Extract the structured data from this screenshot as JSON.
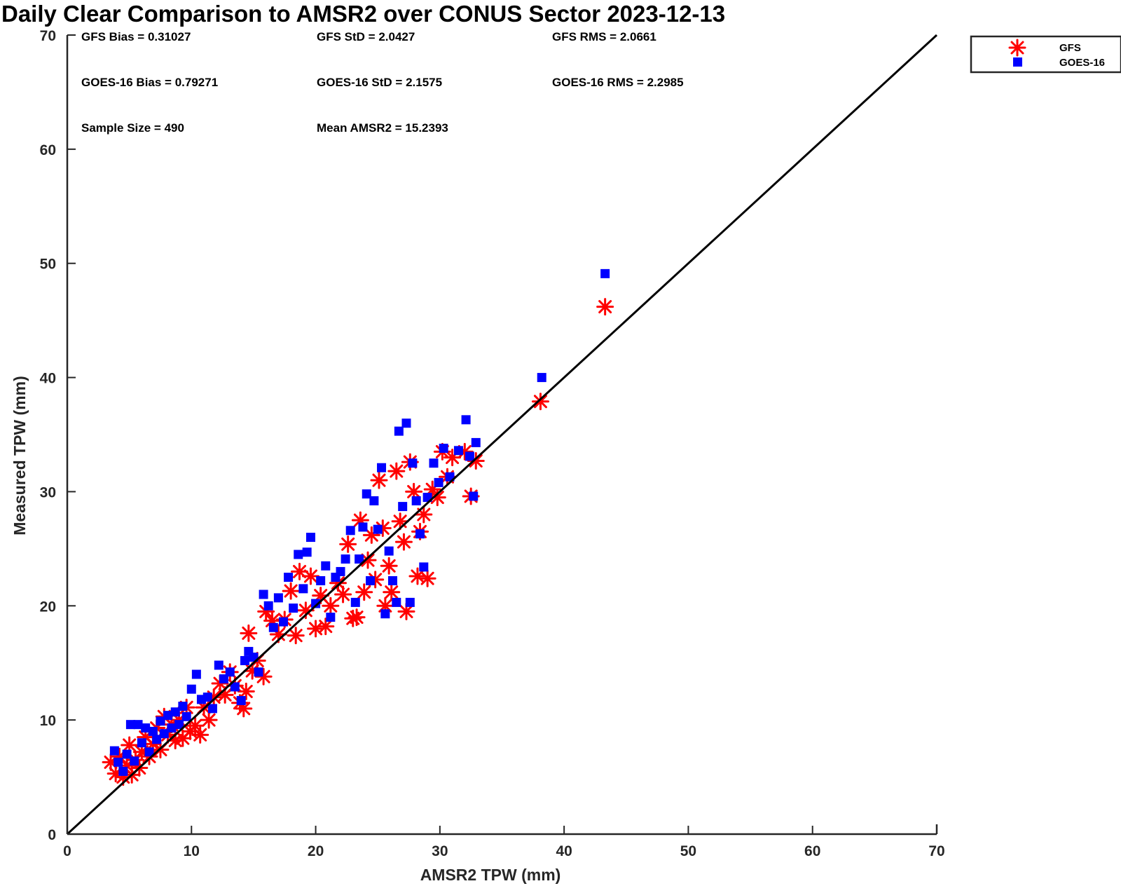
{
  "chart_data": {
    "type": "scatter",
    "title": "Daily Clear Comparison to AMSR2 over CONUS Sector 2023-12-13",
    "xlabel": "AMSR2 TPW (mm)",
    "ylabel": "Measured TPW (mm)",
    "xlim": [
      0,
      70
    ],
    "ylim": [
      0,
      70
    ],
    "xticks": [
      "0",
      "10",
      "20",
      "30",
      "40",
      "50",
      "60",
      "70"
    ],
    "yticks": [
      "0",
      "10",
      "20",
      "30",
      "40",
      "50",
      "60",
      "70"
    ],
    "grid": false,
    "legend_position": "outside-top-right",
    "reference_line": [
      [
        0,
        0
      ],
      [
        70,
        70
      ]
    ],
    "stats": [
      "GFS Bias = 0.31027",
      "GFS StD = 2.0427",
      "GFS RMS = 2.0661",
      "GOES-16 Bias = 0.79271",
      "GOES-16 StD = 2.1575",
      "GOES-16 RMS = 2.2985",
      "Sample Size = 490",
      "Mean AMSR2 = 15.2393"
    ],
    "series": [
      {
        "name": "GFS",
        "marker": "asterisk",
        "color": "#ff0000",
        "points": [
          [
            3.5,
            6.3
          ],
          [
            3.9,
            5.3
          ],
          [
            4.2,
            6.8
          ],
          [
            4.5,
            5.0
          ],
          [
            4.8,
            6.0
          ],
          [
            5.0,
            7.8
          ],
          [
            5.2,
            5.2
          ],
          [
            5.5,
            6.5
          ],
          [
            5.8,
            5.8
          ],
          [
            6.0,
            7.2
          ],
          [
            6.3,
            8.5
          ],
          [
            6.6,
            6.8
          ],
          [
            6.9,
            7.9
          ],
          [
            7.2,
            9.3
          ],
          [
            7.5,
            7.4
          ],
          [
            7.8,
            10.3
          ],
          [
            8.1,
            8.7
          ],
          [
            8.4,
            9.6
          ],
          [
            8.7,
            8.2
          ],
          [
            9.0,
            10.0
          ],
          [
            9.3,
            8.4
          ],
          [
            9.6,
            11.1
          ],
          [
            9.9,
            9.0
          ],
          [
            10.3,
            9.5
          ],
          [
            10.7,
            8.7
          ],
          [
            11.0,
            11.1
          ],
          [
            11.4,
            10.0
          ],
          [
            11.8,
            12.0
          ],
          [
            12.3,
            13.2
          ],
          [
            12.7,
            12.2
          ],
          [
            13.1,
            14.2
          ],
          [
            13.5,
            13.0
          ],
          [
            13.9,
            11.5
          ],
          [
            14.2,
            11.0
          ],
          [
            14.4,
            12.5
          ],
          [
            14.6,
            17.6
          ],
          [
            14.9,
            14.3
          ],
          [
            15.3,
            15.2
          ],
          [
            15.8,
            13.8
          ],
          [
            16.0,
            19.5
          ],
          [
            16.5,
            18.7
          ],
          [
            17.0,
            17.5
          ],
          [
            17.5,
            18.8
          ],
          [
            18.0,
            21.3
          ],
          [
            18.4,
            17.4
          ],
          [
            18.7,
            23.0
          ],
          [
            19.2,
            19.6
          ],
          [
            19.6,
            22.6
          ],
          [
            20.0,
            18.0
          ],
          [
            20.4,
            20.9
          ],
          [
            20.8,
            18.2
          ],
          [
            21.2,
            20.0
          ],
          [
            21.8,
            22.0
          ],
          [
            22.2,
            21.0
          ],
          [
            22.6,
            25.4
          ],
          [
            23.0,
            18.9
          ],
          [
            23.3,
            19.0
          ],
          [
            23.6,
            27.5
          ],
          [
            23.9,
            21.2
          ],
          [
            24.2,
            24.0
          ],
          [
            24.5,
            26.2
          ],
          [
            24.8,
            22.3
          ],
          [
            25.1,
            31.0
          ],
          [
            25.4,
            26.8
          ],
          [
            25.6,
            20.0
          ],
          [
            25.9,
            23.5
          ],
          [
            26.1,
            21.2
          ],
          [
            26.5,
            31.8
          ],
          [
            26.8,
            27.4
          ],
          [
            27.1,
            25.6
          ],
          [
            27.3,
            19.5
          ],
          [
            27.6,
            32.6
          ],
          [
            27.9,
            30.0
          ],
          [
            28.2,
            22.6
          ],
          [
            28.4,
            26.5
          ],
          [
            28.7,
            28.0
          ],
          [
            29.0,
            22.4
          ],
          [
            29.4,
            30.2
          ],
          [
            29.8,
            29.5
          ],
          [
            30.2,
            33.5
          ],
          [
            30.6,
            31.3
          ],
          [
            31.0,
            33.0
          ],
          [
            32.0,
            33.5
          ],
          [
            32.5,
            29.6
          ],
          [
            32.9,
            32.7
          ],
          [
            38.1,
            37.9
          ],
          [
            43.3,
            46.2
          ]
        ]
      },
      {
        "name": "GOES-16",
        "marker": "square",
        "color": "#0000ff",
        "points": [
          [
            3.8,
            7.3
          ],
          [
            4.1,
            6.3
          ],
          [
            4.5,
            5.5
          ],
          [
            4.8,
            7.0
          ],
          [
            5.1,
            9.6
          ],
          [
            5.4,
            6.4
          ],
          [
            5.7,
            9.6
          ],
          [
            6.0,
            8.0
          ],
          [
            6.3,
            9.3
          ],
          [
            6.6,
            7.2
          ],
          [
            6.9,
            9.0
          ],
          [
            7.2,
            8.3
          ],
          [
            7.5,
            9.9
          ],
          [
            7.8,
            8.8
          ],
          [
            8.1,
            10.4
          ],
          [
            8.4,
            9.3
          ],
          [
            8.7,
            10.7
          ],
          [
            9.0,
            9.6
          ],
          [
            9.3,
            11.2
          ],
          [
            9.6,
            10.3
          ],
          [
            10.0,
            12.7
          ],
          [
            10.4,
            14.0
          ],
          [
            10.8,
            11.8
          ],
          [
            11.3,
            12.0
          ],
          [
            11.7,
            11.0
          ],
          [
            12.2,
            14.8
          ],
          [
            12.6,
            13.6
          ],
          [
            13.1,
            14.2
          ],
          [
            13.5,
            12.9
          ],
          [
            14.0,
            11.7
          ],
          [
            14.3,
            15.2
          ],
          [
            14.6,
            16.0
          ],
          [
            15.0,
            15.5
          ],
          [
            15.4,
            14.2
          ],
          [
            15.8,
            21.0
          ],
          [
            16.2,
            20.0
          ],
          [
            16.6,
            18.1
          ],
          [
            17.0,
            20.7
          ],
          [
            17.4,
            18.6
          ],
          [
            17.8,
            22.5
          ],
          [
            18.2,
            19.8
          ],
          [
            18.6,
            24.5
          ],
          [
            19.0,
            21.5
          ],
          [
            19.3,
            24.7
          ],
          [
            19.6,
            26.0
          ],
          [
            20.0,
            20.2
          ],
          [
            20.4,
            22.2
          ],
          [
            20.8,
            23.5
          ],
          [
            21.2,
            19.0
          ],
          [
            21.6,
            22.5
          ],
          [
            22.0,
            23.0
          ],
          [
            22.4,
            24.1
          ],
          [
            22.8,
            26.6
          ],
          [
            23.2,
            20.3
          ],
          [
            23.5,
            24.1
          ],
          [
            23.8,
            26.9
          ],
          [
            24.1,
            29.8
          ],
          [
            24.4,
            22.2
          ],
          [
            24.7,
            29.2
          ],
          [
            25.0,
            26.7
          ],
          [
            25.3,
            32.1
          ],
          [
            25.6,
            19.3
          ],
          [
            25.9,
            24.8
          ],
          [
            26.2,
            22.2
          ],
          [
            26.5,
            20.3
          ],
          [
            26.7,
            35.3
          ],
          [
            27.0,
            28.7
          ],
          [
            27.3,
            36.0
          ],
          [
            27.6,
            20.3
          ],
          [
            27.8,
            32.5
          ],
          [
            28.1,
            29.2
          ],
          [
            28.4,
            26.3
          ],
          [
            28.7,
            23.4
          ],
          [
            29.0,
            29.5
          ],
          [
            29.5,
            32.5
          ],
          [
            29.9,
            30.8
          ],
          [
            30.3,
            33.8
          ],
          [
            30.8,
            31.3
          ],
          [
            31.5,
            33.6
          ],
          [
            32.1,
            36.3
          ],
          [
            32.4,
            33.1
          ],
          [
            32.9,
            34.3
          ],
          [
            32.7,
            29.6
          ],
          [
            38.2,
            40.0
          ],
          [
            43.3,
            49.1
          ]
        ]
      }
    ]
  }
}
